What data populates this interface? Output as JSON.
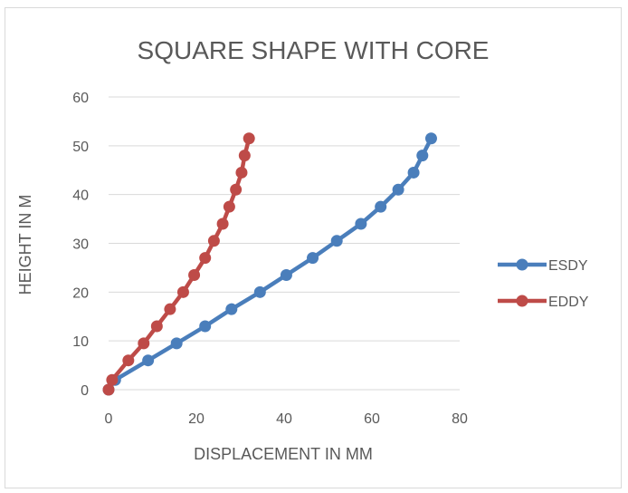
{
  "chart_data": {
    "type": "scatter",
    "title": "SQUARE SHAPE WITH CORE",
    "xlabel": "DISPLACEMENT IN MM",
    "ylabel": "HEIGHT IN M",
    "xlim": [
      0,
      80
    ],
    "ylim": [
      0,
      60
    ],
    "xticks": [
      "0",
      "20",
      "40",
      "60",
      "80"
    ],
    "yticks": [
      "0",
      "10",
      "20",
      "30",
      "40",
      "50",
      "60"
    ],
    "grid": "horizontal",
    "legend_position": "right",
    "series": [
      {
        "name": "ESDY",
        "color": "#4a7ebb",
        "x": [
          0,
          1.5,
          9,
          15.5,
          22,
          28,
          34.5,
          40.5,
          46.5,
          52,
          57.5,
          62,
          66,
          69.5,
          71.5,
          73.5
        ],
        "y": [
          0,
          2,
          6,
          9.5,
          13,
          16.5,
          20,
          23.5,
          27,
          30.5,
          34,
          37.5,
          41,
          44.5,
          48,
          51.5
        ]
      },
      {
        "name": "EDDY",
        "color": "#be4b48",
        "x": [
          0,
          0.8,
          4.5,
          8,
          11,
          14,
          17,
          19.5,
          22,
          24,
          26,
          27.5,
          29,
          30.3,
          31,
          32
        ],
        "y": [
          0,
          2,
          6,
          9.5,
          13,
          16.5,
          20,
          23.5,
          27,
          30.5,
          34,
          37.5,
          41,
          44.5,
          48,
          51.5
        ]
      }
    ]
  }
}
